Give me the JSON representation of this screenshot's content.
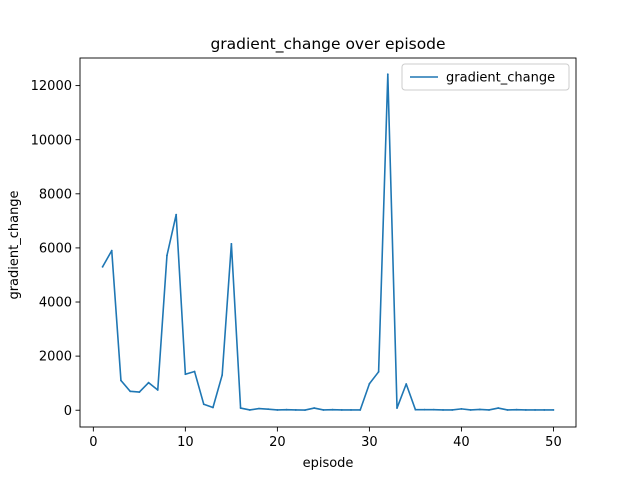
{
  "chart_data": {
    "type": "line",
    "title": "gradient_change over episode",
    "xlabel": "episode",
    "ylabel": "gradient_change",
    "xlim": [
      -1.45,
      52.45
    ],
    "ylim": [
      -620,
      13020
    ],
    "xticks": [
      0,
      10,
      20,
      30,
      40,
      50
    ],
    "yticks": [
      0,
      2000,
      4000,
      6000,
      8000,
      10000,
      12000
    ],
    "legend_position": "top-right",
    "grid": false,
    "series": [
      {
        "name": "gradient_change",
        "color": "#1f77b4",
        "x": [
          1,
          2,
          3,
          4,
          5,
          6,
          7,
          8,
          9,
          10,
          11,
          12,
          13,
          14,
          15,
          16,
          17,
          18,
          19,
          20,
          21,
          22,
          23,
          24,
          25,
          26,
          27,
          28,
          29,
          30,
          31,
          32,
          33,
          34,
          35,
          36,
          37,
          38,
          39,
          40,
          41,
          42,
          43,
          44,
          45,
          46,
          47,
          48,
          49,
          50
        ],
        "y": [
          5300,
          5900,
          1100,
          700,
          670,
          1020,
          750,
          5720,
          7230,
          1330,
          1430,
          220,
          100,
          1300,
          6150,
          80,
          10,
          60,
          40,
          10,
          20,
          10,
          5,
          80,
          10,
          20,
          10,
          10,
          10,
          980,
          1420,
          12420,
          80,
          970,
          20,
          20,
          20,
          10,
          10,
          50,
          10,
          30,
          10,
          80,
          10,
          20,
          10,
          10,
          10,
          10
        ]
      }
    ]
  }
}
